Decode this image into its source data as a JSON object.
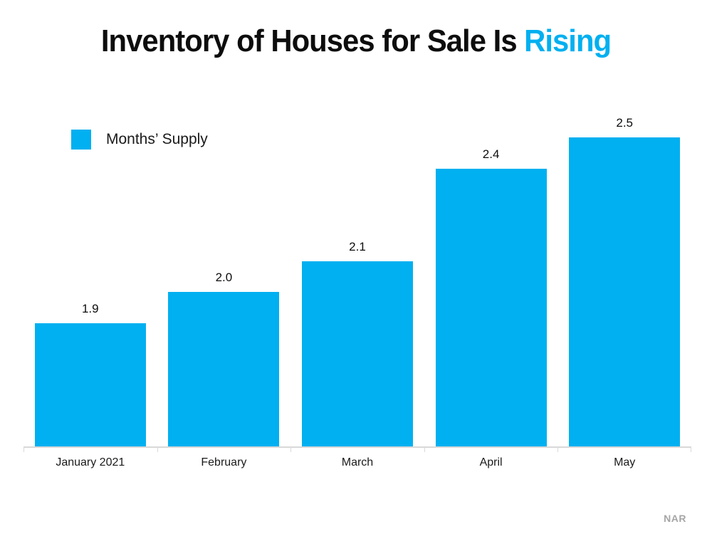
{
  "title": {
    "black": "Inventory of Houses for Sale Is",
    "accent": "Rising"
  },
  "legend": {
    "label": "Months’ Supply"
  },
  "source": "NAR",
  "colors": {
    "accent_blue": "#00B0F0",
    "axis_gray": "#D9D9D9",
    "source_gray": "#A6A6A6",
    "text_black": "#0D0D0D"
  },
  "chart_data": {
    "type": "bar",
    "title": "Inventory of Houses for Sale Is Rising",
    "categories": [
      "January 2021",
      "February",
      "March",
      "April",
      "May"
    ],
    "values": [
      1.9,
      2.0,
      2.1,
      2.4,
      2.5
    ],
    "series_name": "Months’ Supply",
    "xlabel": "",
    "ylabel": "",
    "ylim": [
      1.5,
      2.6
    ],
    "grid": false,
    "data_labels": true,
    "legend_position": "top-left",
    "value_format": "one-decimal",
    "source": "NAR"
  }
}
